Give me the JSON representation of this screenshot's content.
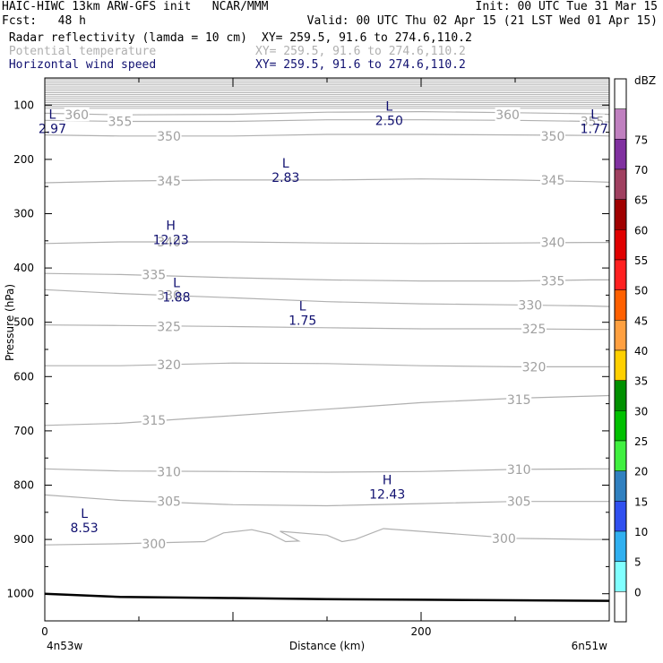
{
  "header": {
    "line1_left": "HAIC-HIWC 13km ARW-GFS init   NCAR/MMM",
    "line1_right": "Init: 00 UTC Tue 31 Mar 15",
    "line2_left": "Fcst:   48 h",
    "line2_right": "Valid: 00 UTC Thu 02 Apr 15 (21 LST Wed 01 Apr 15)",
    "line3_left": " Radar reflectivity (lamda = 10 cm)",
    "line3_right": "XY= 259.5, 91.6 to 274.6,110.2",
    "line4_left": " Potential temperature",
    "line4_right": "XY= 259.5, 91.6 to 274.6,110.2",
    "line5_left": " Horizontal wind speed",
    "line5_right": "XY= 259.5, 91.6 to 274.6,110.2"
  },
  "colors": {
    "text": "#000000",
    "potential_temp": "#b0b0b0",
    "wind_speed": "#101070",
    "terrain": "#000000"
  },
  "chart_data": {
    "type": "cross-section",
    "xlabel": "Distance (km)",
    "ylabel": "Pressure (hPa)",
    "x_ticks": [
      0,
      200
    ],
    "x_tick_labels": [
      "0",
      "200"
    ],
    "x_range": [
      0,
      300
    ],
    "x_end_labels": {
      "left": "4n53w",
      "right": "6n51w"
    },
    "y_ticks": [
      100,
      200,
      300,
      400,
      500,
      600,
      700,
      800,
      900,
      1000
    ],
    "y_range": [
      50,
      1050
    ],
    "isentropes": [
      {
        "theta": 360,
        "points": [
          [
            0,
            115
          ],
          [
            40,
            118
          ],
          [
            100,
            117
          ],
          [
            150,
            113
          ],
          [
            200,
            112
          ],
          [
            250,
            114
          ],
          [
            290,
            116
          ],
          [
            300,
            117
          ]
        ]
      },
      {
        "theta": 355,
        "points": [
          [
            0,
            128
          ],
          [
            40,
            130
          ],
          [
            100,
            130
          ],
          [
            150,
            127
          ],
          [
            200,
            127
          ],
          [
            250,
            128
          ],
          [
            290,
            130
          ],
          [
            300,
            131
          ]
        ]
      },
      {
        "theta": 350,
        "points": [
          [
            0,
            155
          ],
          [
            40,
            157
          ],
          [
            100,
            157
          ],
          [
            150,
            154
          ],
          [
            200,
            154
          ],
          [
            250,
            155
          ],
          [
            290,
            156
          ],
          [
            300,
            157
          ]
        ]
      },
      {
        "theta": 345,
        "points": [
          [
            0,
            243
          ],
          [
            40,
            240
          ],
          [
            90,
            238
          ],
          [
            150,
            238
          ],
          [
            200,
            236
          ],
          [
            250,
            238
          ],
          [
            290,
            241
          ],
          [
            300,
            242
          ]
        ]
      },
      {
        "theta": 340,
        "points": [
          [
            0,
            355
          ],
          [
            40,
            352
          ],
          [
            100,
            352
          ],
          [
            150,
            354
          ],
          [
            200,
            355
          ],
          [
            250,
            354
          ],
          [
            290,
            353
          ],
          [
            300,
            353
          ]
        ]
      },
      {
        "theta": 335,
        "points": [
          [
            0,
            410
          ],
          [
            40,
            412
          ],
          [
            100,
            418
          ],
          [
            150,
            422
          ],
          [
            200,
            424
          ],
          [
            250,
            424
          ],
          [
            290,
            422
          ],
          [
            300,
            422
          ]
        ]
      },
      {
        "theta": 330,
        "points": [
          [
            0,
            440
          ],
          [
            40,
            447
          ],
          [
            100,
            455
          ],
          [
            150,
            462
          ],
          [
            200,
            466
          ],
          [
            250,
            468
          ],
          [
            290,
            470
          ],
          [
            300,
            471
          ]
        ]
      },
      {
        "theta": 325,
        "points": [
          [
            0,
            505
          ],
          [
            40,
            506
          ],
          [
            100,
            508
          ],
          [
            150,
            510
          ],
          [
            200,
            512
          ],
          [
            250,
            512
          ],
          [
            290,
            513
          ],
          [
            300,
            513
          ]
        ]
      },
      {
        "theta": 320,
        "points": [
          [
            0,
            580
          ],
          [
            40,
            580
          ],
          [
            100,
            575
          ],
          [
            150,
            576
          ],
          [
            200,
            580
          ],
          [
            250,
            582
          ],
          [
            290,
            582
          ],
          [
            300,
            582
          ]
        ]
      },
      {
        "theta": 315,
        "points": [
          [
            0,
            690
          ],
          [
            40,
            686
          ],
          [
            100,
            672
          ],
          [
            150,
            660
          ],
          [
            200,
            648
          ],
          [
            250,
            640
          ],
          [
            290,
            636
          ],
          [
            300,
            635
          ]
        ]
      },
      {
        "theta": 310,
        "points": [
          [
            0,
            770
          ],
          [
            40,
            774
          ],
          [
            100,
            775
          ],
          [
            150,
            776
          ],
          [
            200,
            775
          ],
          [
            250,
            771
          ],
          [
            290,
            770
          ],
          [
            300,
            770
          ]
        ]
      },
      {
        "theta": 305,
        "points": [
          [
            0,
            818
          ],
          [
            40,
            828
          ],
          [
            100,
            836
          ],
          [
            150,
            838
          ],
          [
            200,
            834
          ],
          [
            250,
            830
          ],
          [
            290,
            830
          ],
          [
            300,
            830
          ]
        ]
      },
      {
        "theta": 300,
        "points": [
          [
            0,
            910
          ],
          [
            40,
            908
          ],
          [
            85,
            904
          ],
          [
            95,
            888
          ],
          [
            110,
            882
          ],
          [
            120,
            890
          ],
          [
            128,
            904
          ],
          [
            135,
            903
          ],
          [
            125,
            885
          ],
          [
            150,
            892
          ],
          [
            158,
            904
          ],
          [
            165,
            900
          ],
          [
            180,
            880
          ],
          [
            250,
            898
          ],
          [
            290,
            900
          ],
          [
            300,
            900
          ]
        ]
      }
    ],
    "isentrope_labels": [
      {
        "theta": 360,
        "x": 17,
        "p": 118
      },
      {
        "theta": 360,
        "x": 246,
        "p": 118
      },
      {
        "theta": 355,
        "x": 40,
        "p": 130
      },
      {
        "theta": 355,
        "x": 291,
        "p": 130
      },
      {
        "theta": 350,
        "x": 66,
        "p": 157
      },
      {
        "theta": 350,
        "x": 270,
        "p": 157
      },
      {
        "theta": 345,
        "x": 66,
        "p": 240
      },
      {
        "theta": 345,
        "x": 270,
        "p": 238
      },
      {
        "theta": 340,
        "x": 66,
        "p": 352
      },
      {
        "theta": 340,
        "x": 270,
        "p": 353
      },
      {
        "theta": 335,
        "x": 58,
        "p": 412
      },
      {
        "theta": 335,
        "x": 270,
        "p": 424
      },
      {
        "theta": 330,
        "x": 66,
        "p": 450
      },
      {
        "theta": 330,
        "x": 258,
        "p": 468
      },
      {
        "theta": 325,
        "x": 66,
        "p": 508
      },
      {
        "theta": 325,
        "x": 260,
        "p": 512
      },
      {
        "theta": 320,
        "x": 66,
        "p": 578
      },
      {
        "theta": 320,
        "x": 260,
        "p": 582
      },
      {
        "theta": 315,
        "x": 58,
        "p": 680
      },
      {
        "theta": 315,
        "x": 252,
        "p": 642
      },
      {
        "theta": 310,
        "x": 66,
        "p": 775
      },
      {
        "theta": 310,
        "x": 252,
        "p": 771
      },
      {
        "theta": 305,
        "x": 66,
        "p": 830
      },
      {
        "theta": 305,
        "x": 252,
        "p": 830
      },
      {
        "theta": 300,
        "x": 58,
        "p": 908
      },
      {
        "theta": 300,
        "x": 244,
        "p": 898
      }
    ],
    "wind_extrema": [
      {
        "type": "L",
        "value": "2.50",
        "x": 183,
        "p": 110
      },
      {
        "type": "L",
        "value": "2.97",
        "x": 4,
        "p": 125
      },
      {
        "type": "L",
        "value": "1.77",
        "x": 292,
        "p": 125
      },
      {
        "type": "L",
        "value": "2.83",
        "x": 128,
        "p": 215
      },
      {
        "type": "H",
        "value": "12.23",
        "x": 67,
        "p": 330
      },
      {
        "type": "L",
        "value": "1.88",
        "x": 70,
        "p": 435
      },
      {
        "type": "L",
        "value": "1.75",
        "x": 137,
        "p": 478
      },
      {
        "type": "H",
        "value": "12.43",
        "x": 182,
        "p": 798
      },
      {
        "type": "L",
        "value": "8.53",
        "x": 21,
        "p": 860
      }
    ],
    "terrain": [
      [
        0,
        1000
      ],
      [
        40,
        1006
      ],
      [
        100,
        1008
      ],
      [
        150,
        1010
      ],
      [
        200,
        1011
      ],
      [
        250,
        1012
      ],
      [
        300,
        1013
      ]
    ],
    "colorbar": {
      "title": "dBZ",
      "levels": [
        0,
        5,
        10,
        15,
        20,
        25,
        30,
        35,
        40,
        45,
        50,
        55,
        60,
        65,
        70,
        75
      ],
      "colors": [
        "#ffffff",
        "#80ffff",
        "#30b0f0",
        "#3050f0",
        "#3080c0",
        "#40f040",
        "#00c000",
        "#009000",
        "#ffd000",
        "#ffa040",
        "#ff6000",
        "#ff2020",
        "#e00000",
        "#a00000",
        "#a04060",
        "#8030a0",
        "#c080c0",
        "#ffffff"
      ]
    }
  }
}
